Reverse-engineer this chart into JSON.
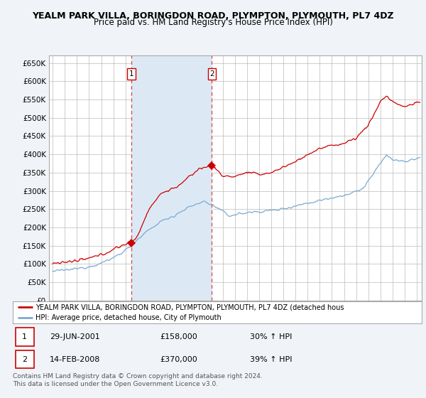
{
  "title": "YEALM PARK VILLA, BORINGDON ROAD, PLYMPTON, PLYMOUTH, PL7 4DZ",
  "subtitle": "Price paid vs. HM Land Registry's House Price Index (HPI)",
  "ylim": [
    0,
    670000
  ],
  "yticks": [
    0,
    50000,
    100000,
    150000,
    200000,
    250000,
    300000,
    350000,
    400000,
    450000,
    500000,
    550000,
    600000,
    650000
  ],
  "xlim_start": 1994.7,
  "xlim_end": 2025.4,
  "bg_color": "#f0f4f8",
  "plot_bg": "#ffffff",
  "grid_color": "#bbbbbb",
  "red_line_color": "#cc0000",
  "blue_line_color": "#7aaad0",
  "shade_color": "#dce9f5",
  "dashed_line_color": "#dd4444",
  "marker_color": "#cc0000",
  "sale1_x": 2001.49,
  "sale1_y": 158000,
  "sale1_label": "1",
  "sale2_x": 2008.12,
  "sale2_y": 370000,
  "sale2_label": "2",
  "legend_text1": "YEALM PARK VILLA, BORINGDON ROAD, PLYMPTON, PLYMOUTH, PL7 4DZ (detached hous",
  "legend_text2": "HPI: Average price, detached house, City of Plymouth",
  "annotation1_date": "29-JUN-2001",
  "annotation1_price": "£158,000",
  "annotation1_hpi": "30% ↑ HPI",
  "annotation2_date": "14-FEB-2008",
  "annotation2_price": "£370,000",
  "annotation2_hpi": "39% ↑ HPI",
  "footer": "Contains HM Land Registry data © Crown copyright and database right 2024.\nThis data is licensed under the Open Government Licence v3.0.",
  "title_fontsize": 9,
  "subtitle_fontsize": 8.5,
  "tick_fontsize": 7.5,
  "legend_fontsize": 7.0,
  "ann_fontsize": 8.0,
  "footer_fontsize": 6.5
}
